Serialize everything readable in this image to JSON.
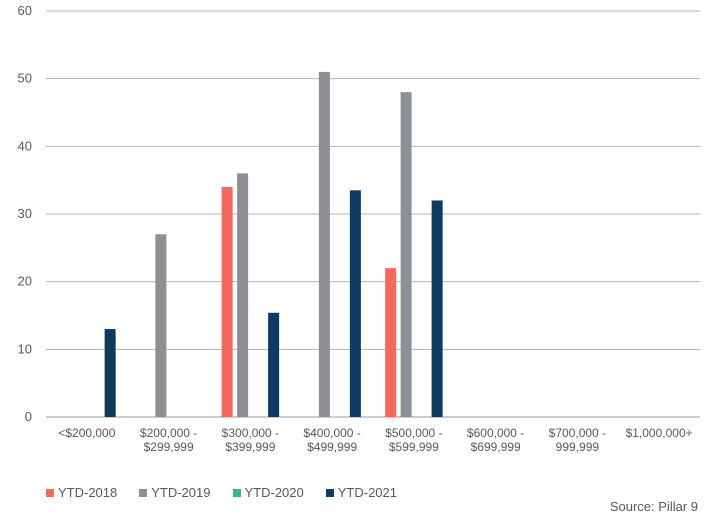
{
  "chart_data": {
    "type": "bar",
    "categories": [
      [
        "<$200,000"
      ],
      [
        "$200,000 -",
        "$299,999"
      ],
      [
        "$300,000 -",
        "$399,999"
      ],
      [
        "$400,000 -",
        "$499,999"
      ],
      [
        "$500,000 -",
        "$599,999"
      ],
      [
        "$600,000 -",
        "$699,999"
      ],
      [
        "$700,000 -",
        "999,999"
      ],
      [
        "$1,000,000+"
      ]
    ],
    "series": [
      {
        "name": "YTD-2018",
        "color": "#f4695f",
        "values": [
          0,
          0,
          34,
          0,
          22,
          0,
          0,
          0
        ]
      },
      {
        "name": "YTD-2019",
        "color": "#8c9094",
        "values": [
          0,
          27,
          36,
          51,
          48,
          0,
          0,
          0
        ]
      },
      {
        "name": "YTD-2020",
        "color": "#3cb489",
        "values": [
          0,
          0,
          0,
          0,
          0,
          0,
          0,
          0
        ]
      },
      {
        "name": "YTD-2021",
        "color": "#0f3a5f",
        "values": [
          13,
          0,
          15.4,
          33.5,
          32,
          0,
          0,
          0
        ]
      }
    ],
    "ylim": [
      0,
      60
    ],
    "yticks": [
      0,
      10,
      20,
      30,
      40,
      50,
      60
    ],
    "grid": true,
    "legend_position": "bottom-left"
  },
  "source": "Source: Pillar 9"
}
